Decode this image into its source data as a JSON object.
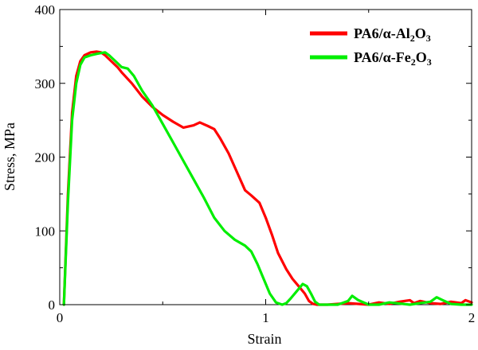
{
  "chart_data": {
    "type": "line",
    "title": "",
    "xlabel": "Strain",
    "ylabel": "Stress, MPa",
    "xlim": [
      0,
      2
    ],
    "ylim": [
      0,
      400
    ],
    "x_ticks": [
      0,
      1,
      2
    ],
    "y_ticks": [
      0,
      100,
      200,
      300,
      400
    ],
    "grid": false,
    "legend": "top-right",
    "series": [
      {
        "name": "PA6/α-Al2O3",
        "legend_parts": [
          {
            "t": "PA6/α-Al",
            "sub": false
          },
          {
            "t": "2",
            "sub": true
          },
          {
            "t": "O",
            "sub": false
          },
          {
            "t": "3",
            "sub": true
          }
        ],
        "color": "#ff0000",
        "x": [
          0.02,
          0.04,
          0.06,
          0.08,
          0.1,
          0.12,
          0.15,
          0.18,
          0.2,
          0.22,
          0.25,
          0.28,
          0.3,
          0.35,
          0.4,
          0.45,
          0.5,
          0.55,
          0.6,
          0.65,
          0.68,
          0.72,
          0.75,
          0.78,
          0.82,
          0.86,
          0.9,
          0.93,
          0.97,
          1.0,
          1.03,
          1.06,
          1.1,
          1.13,
          1.16,
          1.19,
          1.21,
          1.23,
          1.25,
          1.27,
          1.3,
          1.4,
          1.5,
          1.55,
          1.6,
          1.65,
          1.7,
          1.72,
          1.75,
          1.8,
          1.85,
          1.9,
          1.95,
          1.97,
          2.0
        ],
        "y": [
          0,
          150,
          260,
          310,
          330,
          338,
          342,
          343,
          342,
          338,
          330,
          322,
          315,
          300,
          282,
          268,
          257,
          248,
          240,
          243,
          247,
          242,
          238,
          225,
          205,
          180,
          155,
          148,
          138,
          118,
          95,
          70,
          48,
          35,
          25,
          15,
          5,
          1,
          0,
          0,
          0,
          2,
          0,
          3,
          1,
          4,
          6,
          2,
          5,
          2,
          1,
          4,
          2,
          6,
          3
        ]
      },
      {
        "name": "PA6/α-Fe2O3",
        "legend_parts": [
          {
            "t": "PA6/α-Fe",
            "sub": false
          },
          {
            "t": "2",
            "sub": true
          },
          {
            "t": "O",
            "sub": false
          },
          {
            "t": "3",
            "sub": true
          }
        ],
        "color": "#00ee00",
        "x": [
          0.02,
          0.04,
          0.06,
          0.08,
          0.1,
          0.12,
          0.15,
          0.18,
          0.2,
          0.22,
          0.24,
          0.27,
          0.3,
          0.33,
          0.36,
          0.4,
          0.45,
          0.5,
          0.55,
          0.6,
          0.65,
          0.7,
          0.75,
          0.8,
          0.85,
          0.9,
          0.93,
          0.96,
          0.99,
          1.02,
          1.05,
          1.08,
          1.1,
          1.12,
          1.15,
          1.18,
          1.2,
          1.22,
          1.24,
          1.26,
          1.28,
          1.3,
          1.35,
          1.4,
          1.42,
          1.45,
          1.5,
          1.55,
          1.6,
          1.7,
          1.75,
          1.8,
          1.83,
          1.86,
          1.9,
          1.95,
          2.0
        ],
        "y": [
          0,
          140,
          250,
          300,
          325,
          335,
          338,
          340,
          341,
          342,
          338,
          330,
          322,
          320,
          310,
          290,
          270,
          245,
          220,
          195,
          170,
          145,
          118,
          100,
          88,
          80,
          72,
          55,
          35,
          15,
          3,
          0,
          2,
          8,
          18,
          28,
          25,
          15,
          4,
          0,
          0,
          0,
          0,
          5,
          12,
          6,
          0,
          0,
          3,
          0,
          2,
          4,
          10,
          6,
          1,
          0,
          0
        ]
      }
    ]
  }
}
